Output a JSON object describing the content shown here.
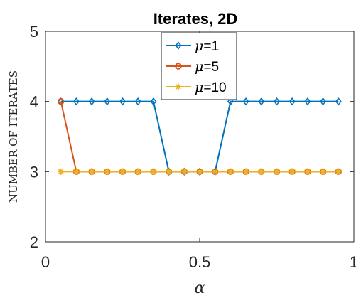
{
  "chart_data": {
    "type": "line",
    "title": "Iterates, 2D",
    "xlabel": "α",
    "ylabel": "NUMBER OF ITERATES",
    "xlim": [
      0,
      1
    ],
    "ylim": [
      2,
      5
    ],
    "xticks": [
      "0",
      "0.5",
      "1"
    ],
    "yticks": [
      "2",
      "3",
      "4",
      "5"
    ],
    "grid": false,
    "legend_position": "top-center",
    "x": [
      0.05,
      0.1,
      0.15,
      0.2,
      0.25,
      0.3,
      0.35,
      0.4,
      0.45,
      0.5,
      0.55,
      0.6,
      0.65,
      0.7,
      0.75,
      0.8,
      0.85,
      0.9,
      0.95
    ],
    "series": [
      {
        "name_symbol": "μ",
        "name_value": "=1",
        "color": "#0072BD",
        "marker": "diamond",
        "values": [
          4,
          4,
          4,
          4,
          4,
          4,
          4,
          3,
          3,
          3,
          3,
          4,
          4,
          4,
          4,
          4,
          4,
          4,
          4
        ]
      },
      {
        "name_symbol": "μ",
        "name_value": "=5",
        "color": "#D95319",
        "marker": "circle",
        "values": [
          4,
          3,
          3,
          3,
          3,
          3,
          3,
          3,
          3,
          3,
          3,
          3,
          3,
          3,
          3,
          3,
          3,
          3,
          3
        ]
      },
      {
        "name_symbol": "μ",
        "name_value": "=10",
        "color": "#EDB120",
        "marker": "star",
        "values": [
          3,
          3,
          3,
          3,
          3,
          3,
          3,
          3,
          3,
          3,
          3,
          3,
          3,
          3,
          3,
          3,
          3,
          3,
          3
        ]
      }
    ]
  }
}
